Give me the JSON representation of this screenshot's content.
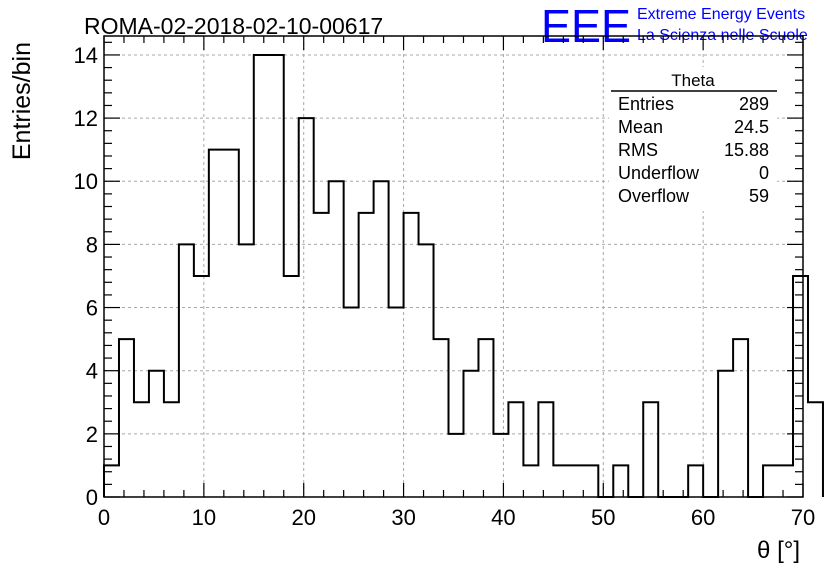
{
  "header": {
    "run_title": "ROMA-02-2018-02-10-00617",
    "logo_text": "EEE",
    "brand_line1": "Extreme Energy Events",
    "brand_line2": "La Scienza nelle Scuole",
    "brand_color": "#0000ff"
  },
  "stats_box": {
    "title": "Theta",
    "rows": [
      {
        "label": "Entries",
        "value": "289"
      },
      {
        "label": "Mean",
        "value": "24.5"
      },
      {
        "label": "RMS",
        "value": "15.88"
      },
      {
        "label": "Underflow",
        "value": "0"
      },
      {
        "label": "Overflow",
        "value": "59"
      }
    ]
  },
  "chart_data": {
    "type": "histogram",
    "title": "ROMA-02-2018-02-10-00617",
    "xlabel": "θ [°]",
    "ylabel": "Entries/bin",
    "xlim": [
      0,
      70
    ],
    "ylim": [
      0,
      14.6
    ],
    "x_ticks": [
      0,
      10,
      20,
      30,
      40,
      50,
      60,
      70
    ],
    "y_ticks": [
      0,
      2,
      4,
      6,
      8,
      10,
      12,
      14
    ],
    "grid": true,
    "bin_width": 1.5,
    "bin_edges_start": 0,
    "values": [
      1,
      5,
      3,
      4,
      3,
      8,
      7,
      11,
      11,
      8,
      14,
      14,
      7,
      12,
      9,
      10,
      6,
      9,
      10,
      6,
      9,
      8,
      5,
      2,
      4,
      5,
      2,
      3,
      1,
      3,
      1,
      1,
      1,
      0,
      1,
      0,
      3,
      0,
      0,
      1,
      0,
      4,
      5,
      0,
      1,
      1,
      7,
      3
    ],
    "line_color": "#000000"
  }
}
